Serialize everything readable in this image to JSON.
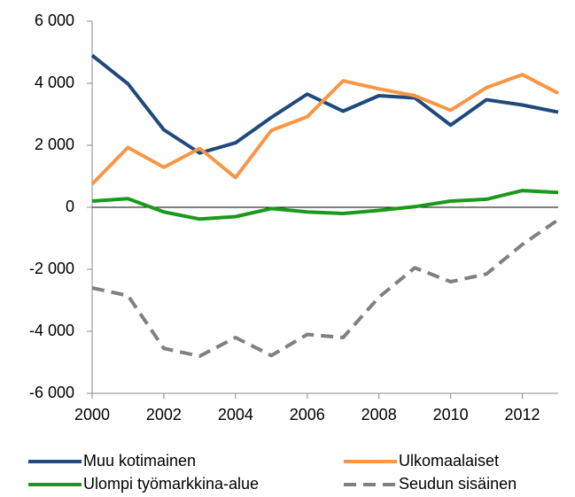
{
  "chart_data": {
    "type": "line",
    "x": [
      2000,
      2001,
      2002,
      2003,
      2004,
      2005,
      2006,
      2007,
      2008,
      2009,
      2010,
      2011,
      2012,
      2013
    ],
    "xlim": [
      2000,
      2013
    ],
    "xticks": [
      2000,
      2002,
      2004,
      2006,
      2008,
      2010,
      2012
    ],
    "ylim": [
      -6000,
      6000
    ],
    "yticks": [
      {
        "value": -6000,
        "label": "-6 000"
      },
      {
        "value": -4000,
        "label": "-4 000"
      },
      {
        "value": -2000,
        "label": "-2 000"
      },
      0,
      {
        "value": 2000,
        "label": "2 000"
      },
      {
        "value": 4000,
        "label": "4 000"
      },
      {
        "value": 6000,
        "label": "6 000"
      }
    ],
    "legend": "bottom",
    "series": [
      {
        "name": "Muu kotimainen",
        "color": "#1f497d",
        "dashed": false,
        "values": [
          4900,
          3980,
          2500,
          1750,
          2080,
          2900,
          3650,
          3100,
          3600,
          3530,
          2650,
          3470,
          3300,
          3070
        ]
      },
      {
        "name": "Ulkomaalaiset",
        "color": "#f79646",
        "dashed": false,
        "values": [
          750,
          1930,
          1290,
          1900,
          960,
          2480,
          2920,
          4080,
          3820,
          3600,
          3130,
          3860,
          4280,
          3680
        ]
      },
      {
        "name": "Ulompi työmarkkina-alue",
        "color": "#1a9a1a",
        "dashed": false,
        "values": [
          200,
          280,
          -150,
          -380,
          -300,
          -40,
          -150,
          -200,
          -100,
          20,
          200,
          260,
          540,
          480
        ]
      },
      {
        "name": "Seudun sisäinen",
        "color": "#808080",
        "dashed": true,
        "values": [
          -2600,
          -2850,
          -4550,
          -4800,
          -4200,
          -4780,
          -4100,
          -4200,
          -2900,
          -1950,
          -2400,
          -2150,
          -1200,
          -400
        ]
      }
    ]
  }
}
